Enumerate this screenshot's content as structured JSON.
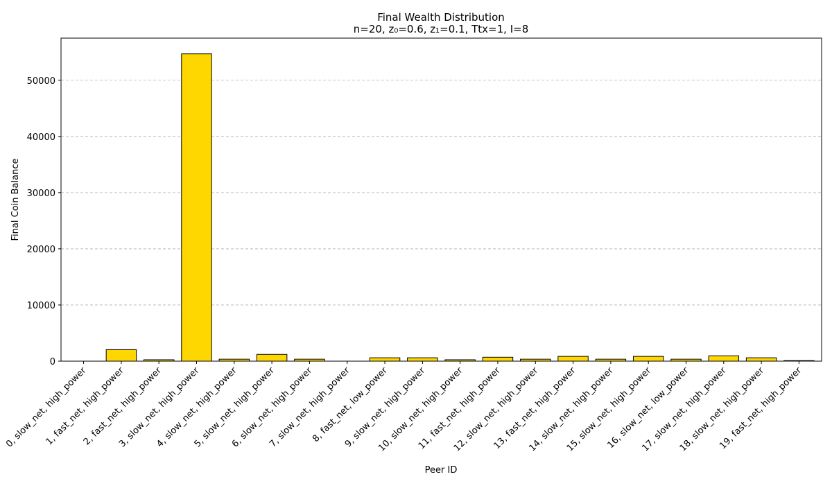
{
  "chart_data": {
    "type": "bar",
    "title": "Final Wealth Distribution",
    "subtitle": "n=20, z₀=0.6, z₁=0.1, Ttx=1, I=8",
    "xlabel": "Peer ID",
    "ylabel": "Final Coin Balance",
    "ylim": [
      0,
      57500
    ],
    "yticks": [
      0,
      10000,
      20000,
      30000,
      40000,
      50000
    ],
    "grid": "y-dashed",
    "bar_color": "#FFD700",
    "edge_color": "#000000",
    "categories": [
      "0, slow_net, high_power",
      "1, fast_net, high_power",
      "2, fast_net, high_power",
      "3, slow_net, high_power",
      "4, slow_net, high_power",
      "5, slow_net, high_power",
      "6, slow_net, high_power",
      "7, slow_net, high_power",
      "8, fast_net, low_power",
      "9, slow_net, high_power",
      "10, slow_net, high_power",
      "11, fast_net, high_power",
      "12, slow_net, high_power",
      "13, fast_net, high_power",
      "14, slow_net, high_power",
      "15, slow_net, high_power",
      "16, slow_net, low_power",
      "17, slow_net, high_power",
      "18, slow_net, high_power",
      "19, fast_net, high_power"
    ],
    "values": [
      0,
      2050,
      250,
      54700,
      350,
      1200,
      350,
      0,
      600,
      600,
      250,
      700,
      350,
      850,
      350,
      850,
      350,
      950,
      600,
      100
    ]
  }
}
